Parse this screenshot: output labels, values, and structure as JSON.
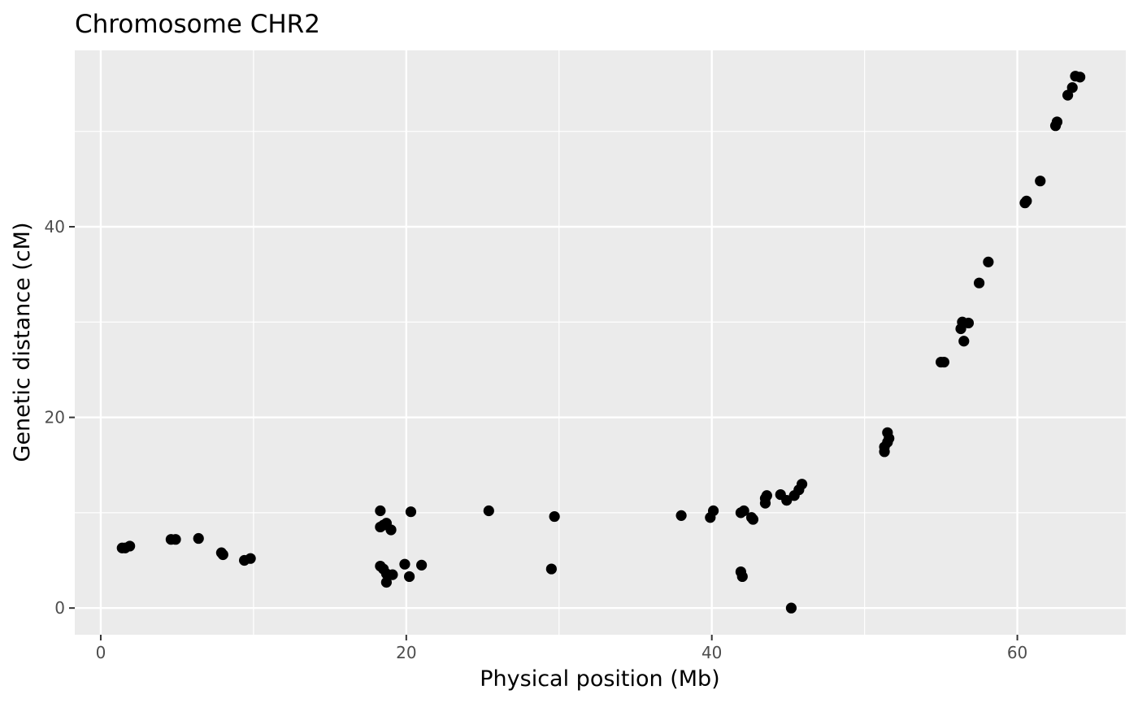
{
  "chart_data": {
    "type": "scatter",
    "title": "Chromosome CHR2",
    "xlabel": "Physical position (Mb)",
    "ylabel": "Genetic distance (cM)",
    "xlim": [
      -1.7,
      67.1
    ],
    "ylim": [
      -2.8,
      58.5
    ],
    "x_ticks": [
      0,
      20,
      40,
      60
    ],
    "y_ticks": [
      0,
      20,
      40
    ],
    "x_minor_ticks": [
      10,
      30,
      50
    ],
    "y_minor_ticks": [
      10,
      30,
      50
    ],
    "grid": true,
    "legend": "none",
    "colors": {
      "panel": "#ebebeb",
      "grid": "#ffffff",
      "point": "#000000",
      "tick_text": "#4d4d4d"
    },
    "points": [
      [
        1.4,
        6.3
      ],
      [
        1.6,
        6.3
      ],
      [
        1.9,
        6.5
      ],
      [
        4.6,
        7.2
      ],
      [
        4.9,
        7.2
      ],
      [
        6.4,
        7.3
      ],
      [
        7.9,
        5.8
      ],
      [
        8.0,
        5.6
      ],
      [
        9.4,
        5.0
      ],
      [
        9.8,
        5.2
      ],
      [
        18.3,
        10.2
      ],
      [
        18.3,
        8.5
      ],
      [
        18.5,
        8.7
      ],
      [
        18.7,
        8.9
      ],
      [
        19.0,
        8.2
      ],
      [
        18.3,
        4.4
      ],
      [
        18.5,
        4.1
      ],
      [
        18.7,
        3.6
      ],
      [
        18.7,
        2.7
      ],
      [
        19.1,
        3.5
      ],
      [
        19.9,
        4.6
      ],
      [
        20.2,
        3.3
      ],
      [
        20.3,
        10.1
      ],
      [
        21.0,
        4.5
      ],
      [
        25.4,
        10.2
      ],
      [
        29.5,
        4.1
      ],
      [
        29.7,
        9.6
      ],
      [
        38.0,
        9.7
      ],
      [
        39.9,
        9.5
      ],
      [
        40.1,
        10.2
      ],
      [
        41.9,
        10.0
      ],
      [
        42.1,
        10.2
      ],
      [
        41.9,
        3.8
      ],
      [
        42.0,
        3.3
      ],
      [
        42.6,
        9.5
      ],
      [
        42.7,
        9.3
      ],
      [
        43.5,
        11.5
      ],
      [
        43.6,
        11.8
      ],
      [
        43.5,
        11.0
      ],
      [
        44.5,
        11.9
      ],
      [
        44.9,
        11.3
      ],
      [
        45.2,
        0.0
      ],
      [
        45.4,
        11.8
      ],
      [
        45.7,
        12.4
      ],
      [
        45.9,
        13.0
      ],
      [
        51.3,
        16.4
      ],
      [
        51.3,
        16.9
      ],
      [
        51.5,
        17.4
      ],
      [
        51.6,
        17.8
      ],
      [
        51.5,
        18.4
      ],
      [
        55.0,
        25.8
      ],
      [
        55.2,
        25.8
      ],
      [
        56.3,
        29.3
      ],
      [
        56.4,
        30.0
      ],
      [
        56.5,
        28.0
      ],
      [
        56.8,
        29.9
      ],
      [
        57.5,
        34.1
      ],
      [
        58.1,
        36.3
      ],
      [
        60.5,
        42.5
      ],
      [
        60.6,
        42.7
      ],
      [
        61.5,
        44.8
      ],
      [
        62.5,
        50.6
      ],
      [
        62.6,
        51.0
      ],
      [
        63.3,
        53.8
      ],
      [
        63.6,
        54.6
      ],
      [
        63.8,
        55.8
      ],
      [
        64.1,
        55.7
      ]
    ]
  }
}
